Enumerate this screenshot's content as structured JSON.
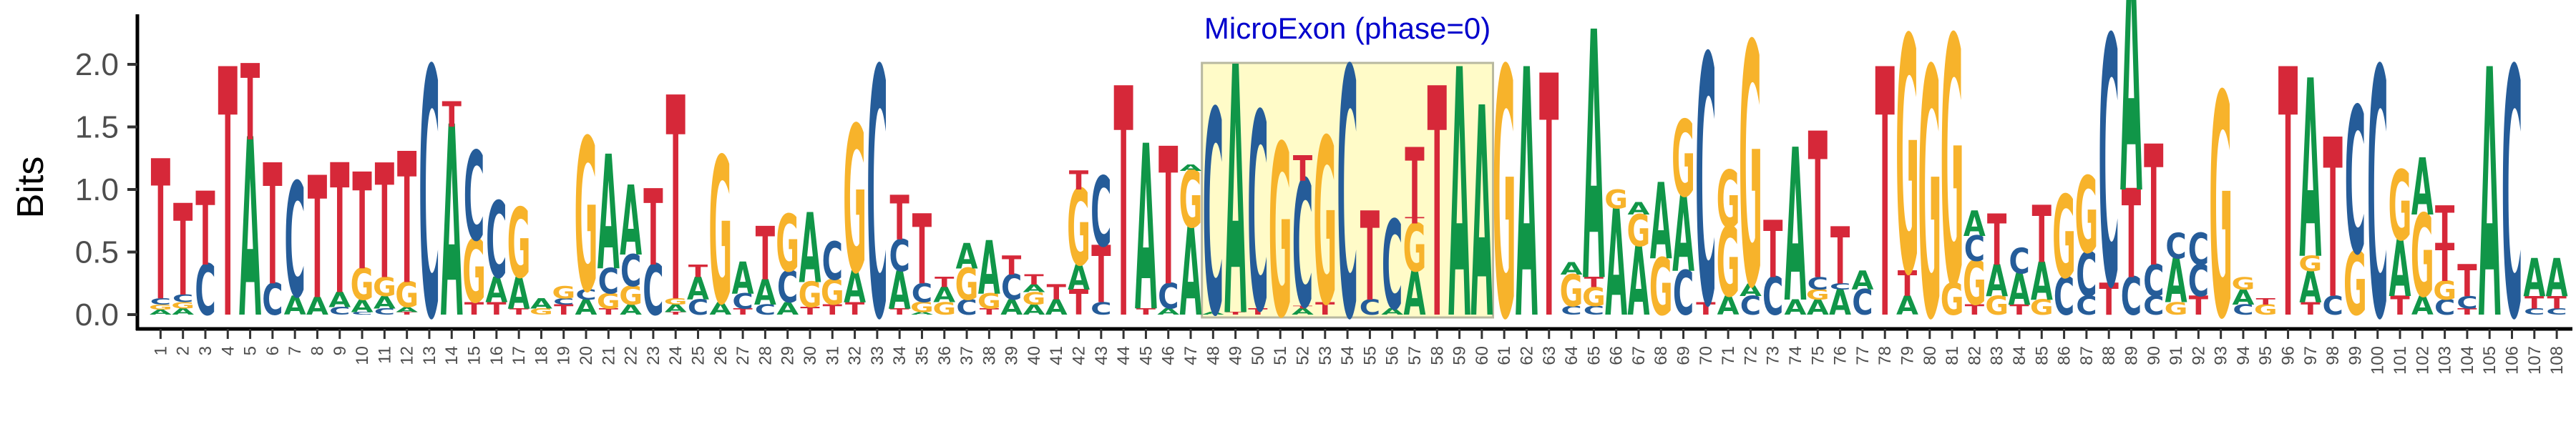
{
  "chart_data": {
    "type": "sequence-logo",
    "ylabel": "Bits",
    "xlabel": "",
    "ylim": [
      0,
      2.4
    ],
    "yticks": [
      "0.0",
      "0.5",
      "1.0",
      "1.5",
      "2.0"
    ],
    "positions": [
      "1",
      "2",
      "3",
      "4",
      "5",
      "6",
      "7",
      "8",
      "9",
      "10",
      "11",
      "12",
      "13",
      "14",
      "15",
      "16",
      "17",
      "18",
      "19",
      "20",
      "21",
      "22",
      "23",
      "24",
      "25",
      "26",
      "27",
      "28",
      "29",
      "30",
      "31",
      "32",
      "33",
      "34",
      "35",
      "36",
      "37",
      "38",
      "39",
      "40",
      "41",
      "42",
      "43",
      "44",
      "45",
      "46",
      "47",
      "48",
      "49",
      "50",
      "51",
      "52",
      "53",
      "54",
      "55",
      "56",
      "57",
      "58",
      "59",
      "60",
      "61",
      "62",
      "63",
      "64",
      "65",
      "66",
      "67",
      "68",
      "69",
      "70",
      "71",
      "72",
      "73",
      "74",
      "75",
      "76",
      "77",
      "78",
      "79",
      "80",
      "81",
      "82",
      "83",
      "84",
      "85",
      "86",
      "87",
      "88",
      "89",
      "90",
      "91",
      "92",
      "93",
      "94",
      "95",
      "96",
      "97",
      "98",
      "99",
      "100",
      "101",
      "102",
      "103",
      "104",
      "105",
      "106",
      "107",
      "108"
    ],
    "colors": {
      "A": "#109648",
      "C": "#255C99",
      "G": "#F7B32B",
      "T": "#D62839"
    },
    "highlight": {
      "label": "MicroExon (phase=0)",
      "start": 48,
      "end": 60,
      "fill": "#FFFBC8",
      "label_color": "#0000CC"
    },
    "columns": [
      [
        [
          "A",
          0.04
        ],
        [
          "G",
          0.04
        ],
        [
          "C",
          0.05
        ],
        [
          "T",
          1.1
        ]
      ],
      [
        [
          "A",
          0.05
        ],
        [
          "G",
          0.05
        ],
        [
          "C",
          0.06
        ],
        [
          "T",
          0.72
        ]
      ],
      [
        [
          "C",
          0.4
        ],
        [
          "T",
          0.58
        ]
      ],
      [
        [
          "T",
          1.95
        ]
      ],
      [
        [
          "A",
          1.4
        ],
        [
          "T",
          0.6
        ]
      ],
      [
        [
          "C",
          0.25
        ],
        [
          "T",
          0.95
        ]
      ],
      [
        [
          "A",
          0.15
        ],
        [
          "C",
          0.9
        ]
      ],
      [
        [
          "A",
          0.14
        ],
        [
          "T",
          0.96
        ]
      ],
      [
        [
          "C",
          0.06
        ],
        [
          "A",
          0.12
        ],
        [
          "T",
          1.02
        ]
      ],
      [
        [
          "C",
          0.02
        ],
        [
          "A",
          0.1
        ],
        [
          "G",
          0.25
        ],
        [
          "T",
          0.76
        ]
      ],
      [
        [
          "C",
          0.05
        ],
        [
          "A",
          0.1
        ],
        [
          "G",
          0.15
        ],
        [
          "T",
          0.9
        ]
      ],
      [
        [
          "T",
          0.02
        ],
        [
          "A",
          0.04
        ],
        [
          "G",
          0.2
        ],
        [
          "T",
          1.03
        ]
      ],
      [
        [
          "C",
          1.95
        ]
      ],
      [
        [
          "A",
          1.5
        ],
        [
          "T",
          0.2
        ]
      ],
      [
        [
          "T",
          0.1
        ],
        [
          "G",
          0.5
        ],
        [
          "C",
          0.7
        ]
      ],
      [
        [
          "T",
          0.1
        ],
        [
          "A",
          0.2
        ],
        [
          "C",
          0.6
        ]
      ],
      [
        [
          "T",
          0.05
        ],
        [
          "A",
          0.25
        ],
        [
          "G",
          0.55
        ]
      ],
      [
        [
          "G",
          0.05
        ],
        [
          "A",
          0.08
        ]
      ],
      [
        [
          "T",
          0.08
        ],
        [
          "C",
          0.05
        ],
        [
          "G",
          0.1
        ]
      ],
      [
        [
          "A",
          0.12
        ],
        [
          "C",
          0.08
        ],
        [
          "G",
          1.2
        ]
      ],
      [
        [
          "T",
          0.05
        ],
        [
          "G",
          0.12
        ],
        [
          "C",
          0.2
        ],
        [
          "A",
          0.9
        ]
      ],
      [
        [
          "A",
          0.08
        ],
        [
          "G",
          0.15
        ],
        [
          "C",
          0.25
        ],
        [
          "A",
          0.55
        ]
      ],
      [
        [
          "C",
          0.4
        ],
        [
          "T",
          0.6
        ]
      ],
      [
        [
          "T",
          0.02
        ],
        [
          "A",
          0.06
        ],
        [
          "G",
          0.05
        ],
        [
          "T",
          1.6
        ]
      ],
      [
        [
          "C",
          0.12
        ],
        [
          "A",
          0.18
        ],
        [
          "T",
          0.1
        ]
      ],
      [
        [
          "A",
          0.1
        ],
        [
          "G",
          1.15
        ]
      ],
      [
        [
          "T",
          0.05
        ],
        [
          "C",
          0.12
        ],
        [
          "A",
          0.25
        ]
      ],
      [
        [
          "C",
          0.08
        ],
        [
          "A",
          0.2
        ],
        [
          "T",
          0.42
        ]
      ],
      [
        [
          "A",
          0.1
        ],
        [
          "C",
          0.25
        ],
        [
          "G",
          0.45
        ]
      ],
      [
        [
          "T",
          0.06
        ],
        [
          "G",
          0.2
        ],
        [
          "A",
          0.55
        ]
      ],
      [
        [
          "T",
          0.08
        ],
        [
          "G",
          0.2
        ],
        [
          "C",
          0.3
        ]
      ],
      [
        [
          "T",
          0.1
        ],
        [
          "A",
          0.25
        ],
        [
          "G",
          1.15
        ]
      ],
      [
        [
          "C",
          1.95
        ]
      ],
      [
        [
          "T",
          0.05
        ],
        [
          "A",
          0.3
        ],
        [
          "C",
          0.25
        ],
        [
          "T",
          0.35
        ]
      ],
      [
        [
          "A",
          0.02
        ],
        [
          "G",
          0.08
        ],
        [
          "C",
          0.15
        ],
        [
          "T",
          0.55
        ]
      ],
      [
        [
          "G",
          0.1
        ],
        [
          "A",
          0.12
        ],
        [
          "T",
          0.08
        ]
      ],
      [
        [
          "C",
          0.12
        ],
        [
          "G",
          0.25
        ],
        [
          "A",
          0.2
        ]
      ],
      [
        [
          "T",
          0.05
        ],
        [
          "G",
          0.12
        ],
        [
          "A",
          0.42
        ]
      ],
      [
        [
          "A",
          0.12
        ],
        [
          "C",
          0.2
        ],
        [
          "T",
          0.15
        ]
      ],
      [
        [
          "A",
          0.08
        ],
        [
          "G",
          0.1
        ],
        [
          "A",
          0.06
        ],
        [
          "T",
          0.08
        ]
      ],
      [
        [
          "A",
          0.12
        ],
        [
          "T",
          0.12
        ]
      ],
      [
        [
          "T",
          0.2
        ],
        [
          "A",
          0.2
        ],
        [
          "G",
          0.6
        ],
        [
          "T",
          0.15
        ]
      ],
      [
        [
          "C",
          0.1
        ],
        [
          "T",
          0.45
        ],
        [
          "C",
          0.55
        ],
        [
          "T",
          0.0
        ]
      ],
      [
        [
          "T",
          1.8
        ]
      ],
      [
        [
          "T",
          0.05
        ],
        [
          "A",
          1.3
        ]
      ],
      [
        [
          "A",
          0.05
        ],
        [
          "C",
          0.2
        ],
        [
          "T",
          1.08
        ]
      ],
      [
        [
          "A",
          0.7
        ],
        [
          "G",
          0.45
        ],
        [
          "A",
          0.05
        ]
      ],
      [
        [
          "A",
          0.02
        ],
        [
          "C",
          1.6
        ]
      ],
      [
        [
          "T",
          0.02
        ],
        [
          "A",
          1.95
        ]
      ],
      [
        [
          "T",
          0.05
        ],
        [
          "C",
          1.55
        ]
      ],
      [
        [
          "G",
          1.35
        ]
      ],
      [
        [
          "A",
          0.05
        ],
        [
          "T",
          0.02
        ],
        [
          "C",
          1.0
        ],
        [
          "T",
          0.2
        ]
      ],
      [
        [
          "T",
          0.1
        ],
        [
          "G",
          1.3
        ]
      ],
      [
        [
          "C",
          1.95
        ]
      ],
      [
        [
          "C",
          0.12
        ],
        [
          "T",
          0.7
        ]
      ],
      [
        [
          "A",
          0.05
        ],
        [
          "C",
          0.7
        ]
      ],
      [
        [
          "A",
          0.35
        ],
        [
          "G",
          0.38
        ],
        [
          "T",
          0.05
        ],
        [
          "T",
          0.55
        ]
      ],
      [
        [
          "T",
          1.8
        ]
      ],
      [
        [
          "A",
          1.95
        ]
      ],
      [
        [
          "A",
          1.65
        ]
      ],
      [
        [
          "G",
          1.95
        ]
      ],
      [
        [
          "A",
          1.95
        ]
      ],
      [
        [
          "T",
          1.9
        ]
      ],
      [
        [
          "C",
          0.07
        ],
        [
          "G",
          0.25
        ],
        [
          "A",
          0.1
        ]
      ],
      [
        [
          "C",
          0.07
        ],
        [
          "G",
          0.15
        ],
        [
          "T",
          0.08
        ],
        [
          "A",
          1.95
        ]
      ],
      [
        [
          "A",
          0.85
        ],
        [
          "G",
          0.15
        ]
      ],
      [
        [
          "A",
          0.55
        ],
        [
          "G",
          0.25
        ],
        [
          "A",
          0.1
        ]
      ],
      [
        [
          "G",
          0.45
        ],
        [
          "A",
          0.6
        ]
      ],
      [
        [
          "C",
          0.35
        ],
        [
          "A",
          0.6
        ],
        [
          "G",
          0.6
        ]
      ],
      [
        [
          "T",
          0.1
        ],
        [
          "C",
          1.95
        ]
      ],
      [
        [
          "A",
          0.15
        ],
        [
          "G",
          0.55
        ],
        [
          "G",
          0.45
        ]
      ],
      [
        [
          "C",
          0.15
        ],
        [
          "A",
          0.1
        ],
        [
          "G",
          1.9
        ]
      ],
      [
        [
          "C",
          0.3
        ],
        [
          "T",
          0.45
        ]
      ],
      [
        [
          "A",
          0.12
        ],
        [
          "A",
          1.2
        ]
      ],
      [
        [
          "A",
          0.12
        ],
        [
          "G",
          0.08
        ],
        [
          "C",
          0.1
        ],
        [
          "T",
          1.15
        ]
      ],
      [
        [
          "A",
          0.2
        ],
        [
          "C",
          0.05
        ],
        [
          "T",
          0.45
        ]
      ],
      [
        [
          "C",
          0.2
        ],
        [
          "A",
          0.15
        ]
      ],
      [
        [
          "T",
          1.95
        ]
      ],
      [
        [
          "A",
          0.15
        ],
        [
          "T",
          0.2
        ],
        [
          "G",
          1.85
        ]
      ],
      [
        [
          "G",
          1.95
        ]
      ],
      [
        [
          "G",
          0.25
        ],
        [
          "G",
          1.95
        ]
      ],
      [
        [
          "T",
          0.08
        ],
        [
          "G",
          0.35
        ],
        [
          "C",
          0.2
        ],
        [
          "A",
          0.2
        ]
      ],
      [
        [
          "G",
          0.15
        ],
        [
          "A",
          0.25
        ],
        [
          "T",
          0.4
        ]
      ],
      [
        [
          "T",
          0.08
        ],
        [
          "A",
          0.25
        ],
        [
          "C",
          0.2
        ]
      ],
      [
        [
          "G",
          0.12
        ],
        [
          "A",
          0.3
        ],
        [
          "T",
          0.45
        ]
      ],
      [
        [
          "C",
          0.3
        ],
        [
          "G",
          0.65
        ]
      ],
      [
        [
          "C",
          0.15
        ],
        [
          "C",
          0.35
        ],
        [
          "G",
          0.6
        ]
      ],
      [
        [
          "T",
          0.25
        ],
        [
          "C",
          1.95
        ]
      ],
      [
        [
          "C",
          0.3
        ],
        [
          "T",
          0.7
        ],
        [
          "A",
          1.95
        ]
      ],
      [
        [
          "C",
          0.15
        ],
        [
          "C",
          0.25
        ],
        [
          "T",
          0.95
        ]
      ],
      [
        [
          "G",
          0.1
        ],
        [
          "A",
          0.35
        ],
        [
          "C",
          0.2
        ]
      ],
      [
        [
          "T",
          0.15
        ],
        [
          "C",
          0.25
        ],
        [
          "C",
          0.25
        ]
      ],
      [
        [
          "G",
          1.75
        ]
      ],
      [
        [
          "C",
          0.08
        ],
        [
          "A",
          0.12
        ],
        [
          "G",
          0.1
        ]
      ],
      [
        [
          "G",
          0.08
        ],
        [
          "T",
          0.05
        ]
      ],
      [
        [
          "T",
          1.95
        ]
      ],
      [
        [
          "T",
          0.1
        ],
        [
          "A",
          0.25
        ],
        [
          "G",
          0.12
        ],
        [
          "A",
          1.4
        ]
      ],
      [
        [
          "C",
          0.15
        ],
        [
          "T",
          1.25
        ]
      ],
      [
        [
          "G",
          0.5
        ],
        [
          "C",
          1.15
        ]
      ],
      [
        [
          "C",
          1.95
        ]
      ],
      [
        [
          "T",
          0.15
        ],
        [
          "A",
          0.45
        ],
        [
          "G",
          0.55
        ]
      ],
      [
        [
          "A",
          0.15
        ],
        [
          "G",
          0.65
        ],
        [
          "A",
          0.45
        ]
      ],
      [
        [
          "C",
          0.12
        ],
        [
          "G",
          0.15
        ],
        [
          "T",
          0.3
        ],
        [
          "T",
          0.3
        ]
      ],
      [
        [
          "T",
          0.05
        ],
        [
          "C",
          0.1
        ],
        [
          "T",
          0.25
        ]
      ],
      [
        [
          "A",
          1.95
        ]
      ],
      [
        [
          "C",
          1.95
        ]
      ],
      [
        [
          "C",
          0.05
        ],
        [
          "T",
          0.1
        ],
        [
          "A",
          0.3
        ]
      ],
      [
        [
          "C",
          0.05
        ],
        [
          "T",
          0.1
        ],
        [
          "A",
          0.3
        ]
      ]
    ]
  }
}
